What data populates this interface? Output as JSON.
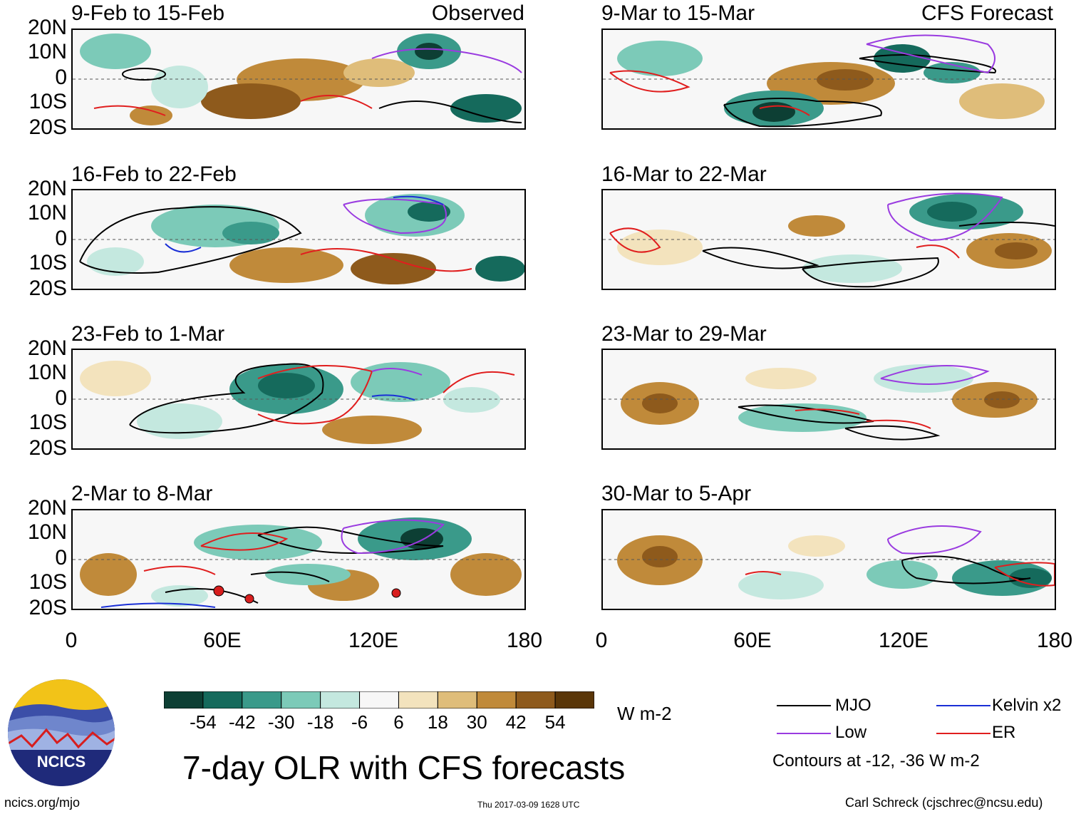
{
  "titles": {
    "observed_tag": "Observed",
    "forecast_tag": "CFS Forecast",
    "main_title": "7-day OLR with CFS forecasts",
    "units": "W m-2"
  },
  "panels_left": [
    {
      "period": "9-Feb to 15-Feb"
    },
    {
      "period": "16-Feb to 22-Feb"
    },
    {
      "period": "23-Feb to 1-Mar"
    },
    {
      "period": "2-Mar to 8-Mar"
    }
  ],
  "panels_right": [
    {
      "period": "9-Mar to 15-Mar"
    },
    {
      "period": "16-Mar to 22-Mar"
    },
    {
      "period": "23-Mar to 29-Mar"
    },
    {
      "period": "30-Mar to 5-Apr"
    }
  ],
  "lat_labels": [
    "20N",
    "10N",
    "0",
    "10S",
    "20S"
  ],
  "lon_labels": [
    "0",
    "60E",
    "120E",
    "180"
  ],
  "colorbar": {
    "labels": [
      "-54",
      "-42",
      "-30",
      "-18",
      "-6",
      "6",
      "18",
      "30",
      "42",
      "54"
    ],
    "colors": [
      "#0d3f34",
      "#156a5c",
      "#3a9a8a",
      "#7ccab8",
      "#c4e8df",
      "#f7f7f7",
      "#f3e3bd",
      "#dfbd7a",
      "#c08a3a",
      "#8e5a1c",
      "#5a3608"
    ]
  },
  "legend": {
    "mjo": "MJO",
    "kelvin": "Kelvin x2",
    "low": "Low",
    "er": "ER",
    "contours_note": "Contours at -12, -36 W m-2",
    "colors": {
      "mjo": "#000000",
      "kelvin": "#1a2fd6",
      "low": "#9a3be0",
      "er": "#e01e1e"
    }
  },
  "logo": {
    "text": "NCICS"
  },
  "footer": {
    "left": "ncics.org/mjo",
    "center": "Thu 2017-03-09 1628 UTC",
    "right": "Carl Schreck (cjschrec@ncsu.edu)"
  }
}
